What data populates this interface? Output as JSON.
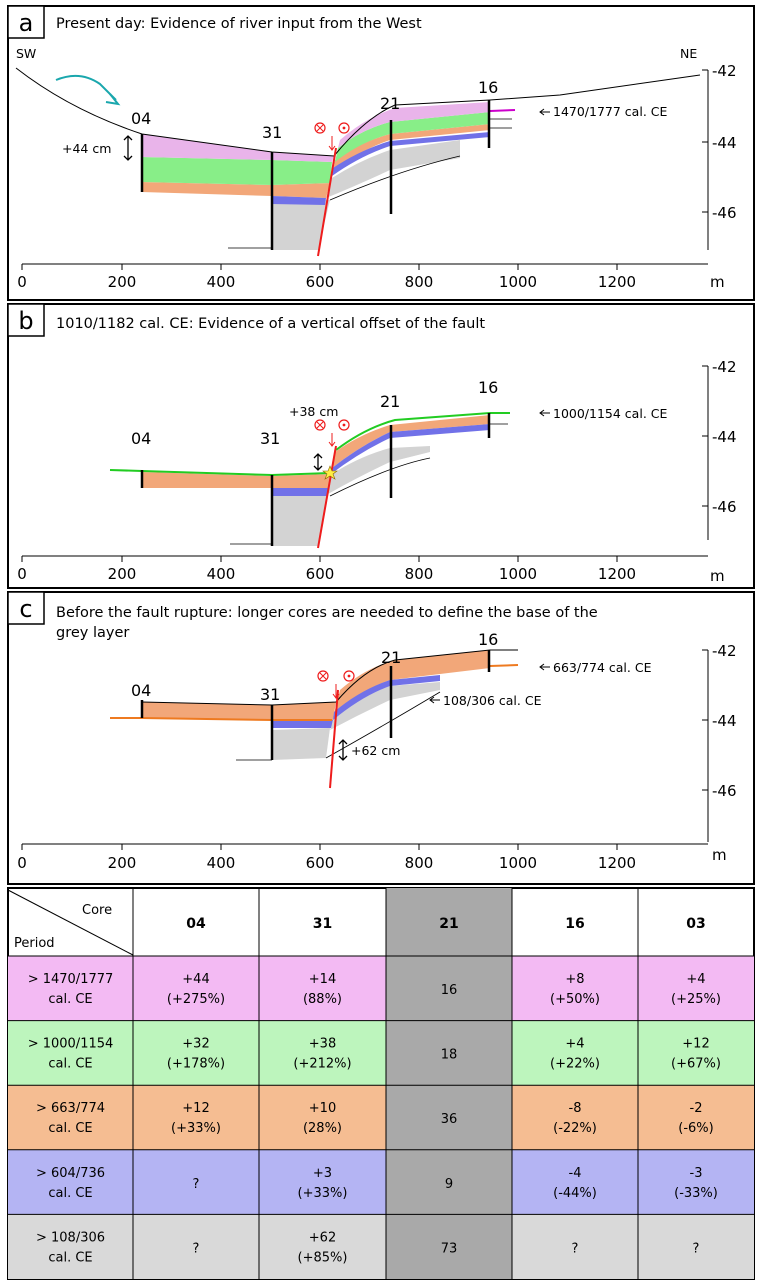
{
  "panels": [
    {
      "id": "a",
      "title": "Present day: Evidence of river input from the West",
      "sw": "SW",
      "ne": "NE",
      "cores": [
        "04",
        "31",
        "21",
        "16"
      ],
      "date_label": "1470/1777 cal. CE",
      "offset_label": "+44 cm",
      "x_ticks": [
        "0",
        "200",
        "400",
        "600",
        "800",
        "1000",
        "1200"
      ],
      "x_unit": "m",
      "y_ticks": [
        "-42",
        "-44",
        "-46"
      ]
    },
    {
      "id": "b",
      "title": "1010/1182 cal. CE: Evidence of a vertical offset of the fault",
      "cores": [
        "04",
        "31",
        "21",
        "16"
      ],
      "date_label": "1000/1154 cal. CE",
      "offset_label": "+38 cm",
      "x_ticks": [
        "0",
        "200",
        "400",
        "600",
        "800",
        "1000",
        "1200"
      ],
      "x_unit": "m",
      "y_ticks": [
        "-42",
        "-44",
        "-46"
      ]
    },
    {
      "id": "c",
      "title_line1": "Before the fault rupture: longer cores are needed to define the base of the",
      "title_line2": "grey layer",
      "cores": [
        "04",
        "31",
        "21",
        "16"
      ],
      "date_label": "663/774 cal. CE",
      "date_label2": "108/306 cal. CE",
      "offset_label": "+62 cm",
      "x_ticks": [
        "0",
        "200",
        "400",
        "600",
        "800",
        "1000",
        "1200"
      ],
      "x_unit": "m",
      "y_ticks": [
        "-42",
        "-44",
        "-46"
      ]
    }
  ],
  "colors": {
    "pink": "#e9b4ea",
    "green": "#88ee88",
    "orange": "#f2a779",
    "blue": "#7171e8",
    "grey": "#d3d3d3",
    "fault": "#ee1c1c",
    "teal": "#1aa7ad",
    "magenta_line": "#cc00cc"
  },
  "table": {
    "header_core": "Core",
    "header_period": "Period",
    "cores": [
      "04",
      "31",
      "21",
      "16",
      "03"
    ],
    "rows": [
      {
        "period1": "> 1470/1777",
        "period2": "cal. CE",
        "color": "#f3baf3",
        "cells": [
          [
            "+44",
            "(+275%)"
          ],
          [
            "+14",
            "(88%)"
          ],
          [
            "16",
            ""
          ],
          [
            "+8",
            "(+50%)"
          ],
          [
            "+4",
            "(+25%)"
          ]
        ]
      },
      {
        "period1": "> 1000/1154",
        "period2": "cal. CE",
        "color": "#bdf5bd",
        "cells": [
          [
            "+32",
            "(+178%)"
          ],
          [
            "+38",
            "(+212%)"
          ],
          [
            "18",
            ""
          ],
          [
            "+4",
            "(+22%)"
          ],
          [
            "+12",
            "(+67%)"
          ]
        ]
      },
      {
        "period1": "> 663/774",
        "period2": "cal. CE",
        "color": "#f5bd92",
        "cells": [
          [
            "+12",
            "(+33%)"
          ],
          [
            "+10",
            "(28%)"
          ],
          [
            "36",
            ""
          ],
          [
            "-8",
            "(-22%)"
          ],
          [
            "-2",
            "(-6%)"
          ]
        ]
      },
      {
        "period1": "> 604/736",
        "period2": "cal. CE",
        "color": "#b4b4f3",
        "cells": [
          [
            "?",
            ""
          ],
          [
            "+3",
            "(+33%)"
          ],
          [
            "9",
            ""
          ],
          [
            "-4",
            "(-44%)"
          ],
          [
            "-3",
            "(-33%)"
          ]
        ]
      },
      {
        "period1": "> 108/306",
        "period2": "cal. CE",
        "color": "#d9d9d9",
        "cells": [
          [
            "?",
            ""
          ],
          [
            "+62",
            "(+85%)"
          ],
          [
            "73",
            ""
          ],
          [
            "?",
            ""
          ],
          [
            "?",
            ""
          ]
        ]
      }
    ],
    "col21_color": "#a9a9a9"
  }
}
